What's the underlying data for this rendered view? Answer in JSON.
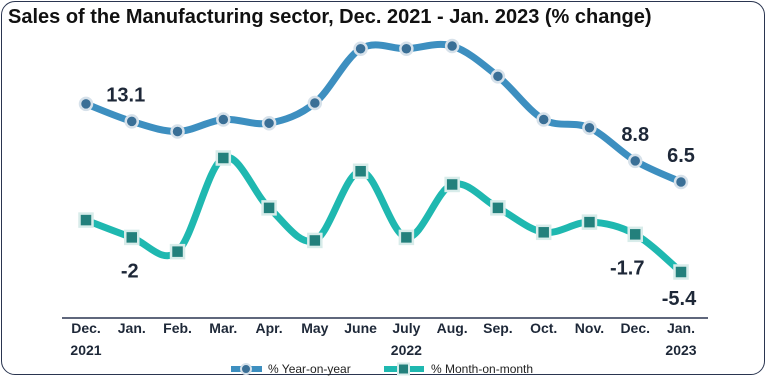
{
  "title": "Sales of the Manufacturing sector,  Dec. 2021 - Jan. 2023 (% change)",
  "chart_data": {
    "type": "line",
    "title": "Sales of the Manufacturing sector,  Dec. 2021 - Jan. 2023 (% change)",
    "categories": [
      "Dec.",
      "Jan.",
      "Feb.",
      "Mar.",
      "Apr.",
      "May",
      "June",
      "July",
      "Aug.",
      "Sep.",
      "Oct.",
      "Nov.",
      "Dec.",
      "Jan."
    ],
    "year_labels": [
      {
        "index": 0,
        "text": "2021"
      },
      {
        "index": 7,
        "text": "2022"
      },
      {
        "index": 13,
        "text": "2023"
      }
    ],
    "series": [
      {
        "name": "% Year-on-year",
        "color": "#3d8fc0",
        "marker": "circle",
        "values": [
          15.0,
          13.1,
          12.0,
          13.3,
          12.9,
          15.1,
          21.0,
          21.0,
          21.3,
          18.0,
          13.3,
          12.4,
          8.8,
          6.5
        ],
        "labeled": [
          1,
          12,
          13
        ]
      },
      {
        "name": "% Month-on-month",
        "color": "#1fb8b0",
        "marker": "square",
        "values": [
          -0.3,
          -2.0,
          -3.4,
          5.8,
          0.9,
          -2.3,
          4.5,
          -2.0,
          3.2,
          0.9,
          -1.5,
          -0.5,
          -1.7,
          -5.4
        ],
        "labeled": [
          1,
          12,
          13
        ]
      }
    ],
    "legend": "bottom-center",
    "grid": false
  }
}
